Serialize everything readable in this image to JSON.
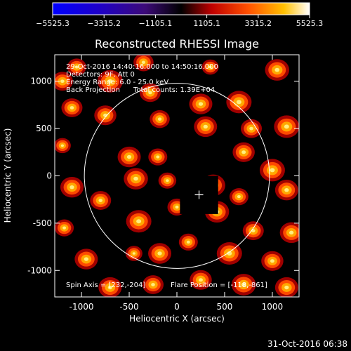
{
  "chart_data": {
    "type": "heatmap",
    "title": "Reconstructed RHESSI Image",
    "xlabel": "Heliocentric X (arcsec)",
    "ylabel": "Heliocentric Y (arcsec)",
    "xlim": [
      -1280,
      1280
    ],
    "ylim": [
      -1280,
      1280
    ],
    "x_ticks": [
      -1000,
      -500,
      0,
      500,
      1000
    ],
    "y_ticks": [
      -1000,
      -500,
      0,
      500,
      1000
    ],
    "colorbar": {
      "range": [
        -5525.3,
        5525.3
      ],
      "tick_labels": [
        "−5525.3",
        "−3315.2",
        "−1105.1",
        "1105.1",
        "3315.2",
        "5525.3"
      ],
      "colormap": "blue-purple-red-yellow-white"
    },
    "info_lines": [
      "29-Oct-2016 14:40:16.000 to 14:50:16.000",
      "Detectors: 9F, Att 0",
      "Energy Range: 6.0 - 25.0 keV",
      "Back Projection      Total counts: 1.39E+04"
    ],
    "spin_axis": "Spin Axis = [232,-204]",
    "flare_position": "Flare Position = [-118,-861]",
    "solar_limb_radius_arcsec": 970,
    "box_center": [
      232,
      -200
    ],
    "box_size_arcsec": 400,
    "footer_timestamp": "31-Oct-2016 06:38",
    "blobs": [
      [
        -700,
        1000,
        1.0
      ],
      [
        -280,
        880,
        0.8
      ],
      [
        250,
        760,
        0.9
      ],
      [
        650,
        780,
        1.0
      ],
      [
        1050,
        1120,
        0.95
      ],
      [
        -1100,
        720,
        0.8
      ],
      [
        -750,
        640,
        0.85
      ],
      [
        -180,
        600,
        0.75
      ],
      [
        300,
        520,
        0.9
      ],
      [
        780,
        500,
        0.8
      ],
      [
        1150,
        520,
        1.0
      ],
      [
        -1200,
        320,
        0.6
      ],
      [
        -500,
        200,
        0.9
      ],
      [
        -200,
        200,
        0.7
      ],
      [
        -430,
        -30,
        0.95
      ],
      [
        -100,
        -50,
        0.65
      ],
      [
        700,
        250,
        0.85
      ],
      [
        1000,
        60,
        1.0
      ],
      [
        -1100,
        -120,
        0.9
      ],
      [
        -800,
        -260,
        0.8
      ],
      [
        380,
        -100,
        0.95
      ],
      [
        650,
        -220,
        0.7
      ],
      [
        1150,
        -150,
        0.9
      ],
      [
        -1180,
        -550,
        0.7
      ],
      [
        -400,
        -480,
        1.0
      ],
      [
        0,
        -330,
        0.7
      ],
      [
        420,
        -380,
        0.95
      ],
      [
        800,
        -580,
        0.8
      ],
      [
        1200,
        -600,
        0.9
      ],
      [
        -950,
        -880,
        0.9
      ],
      [
        -450,
        -820,
        0.6
      ],
      [
        -180,
        -820,
        0.9
      ],
      [
        120,
        -700,
        0.7
      ],
      [
        550,
        -820,
        1.0
      ],
      [
        1000,
        -900,
        0.85
      ],
      [
        -700,
        -1180,
        0.9
      ],
      [
        -250,
        -1150,
        0.8
      ],
      [
        250,
        -1100,
        0.85
      ],
      [
        700,
        -1150,
        0.95
      ],
      [
        1150,
        -1180,
        0.9
      ],
      [
        -1050,
        1150,
        0.7
      ],
      [
        -350,
        1200,
        0.75
      ],
      [
        350,
        1150,
        0.6
      ],
      [
        -1200,
        1000,
        0.8
      ]
    ]
  }
}
